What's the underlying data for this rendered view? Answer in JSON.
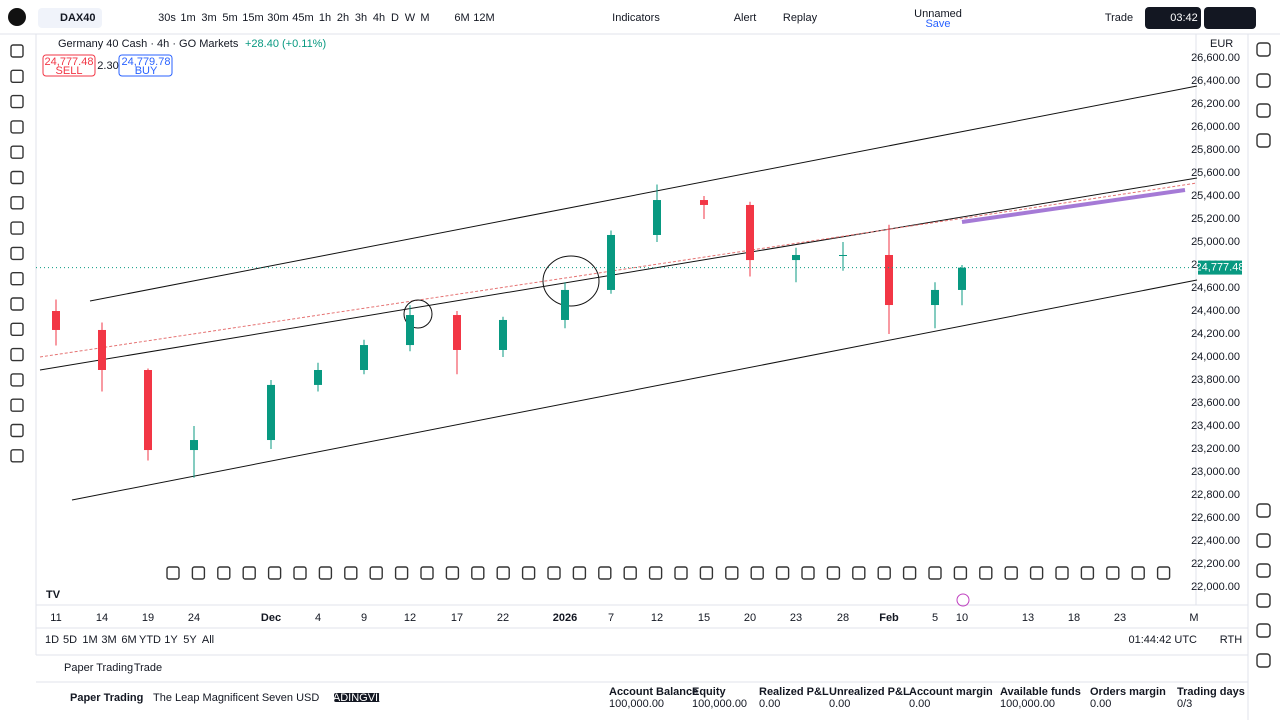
{
  "top_toolbar": {
    "symbol": "DAX40",
    "intervals": [
      "30s",
      "1m",
      "3m",
      "5m",
      "15m",
      "30m",
      "45m",
      "1h",
      "2h",
      "3h",
      "4h",
      "D",
      "W",
      "M",
      "6M",
      "12M"
    ],
    "indicators": "Indicators",
    "alert": "Alert",
    "replay": "Replay",
    "layout_name": "Unnamed",
    "layout_status": "Save",
    "trade": "Trade",
    "timer": "03:42"
  },
  "legend": {
    "title": "Germany 40 Cash · 4h · GO Markets",
    "change": "+28.40 (+0.11%)",
    "sell_price": "24,777.48",
    "sell": "SELL",
    "spread": "2.30",
    "buy_price": "24,779.78",
    "buy": "BUY"
  },
  "chart_data": {
    "type": "candlestick",
    "currency": "EUR",
    "categories": [
      "11",
      "14",
      "19",
      "24",
      "Dec",
      "4",
      "9",
      "12",
      "17",
      "22",
      "2026",
      "7",
      "12",
      "15",
      "20",
      "23",
      "28",
      "Feb",
      "5",
      "10",
      "13",
      "18",
      "23",
      "M"
    ],
    "open": [
      24400,
      24235,
      23887,
      23191,
      23278,
      23757,
      23887,
      24104,
      24365,
      24061,
      24322,
      24583,
      25061,
      25365,
      25322,
      24843,
      24887,
      24887,
      24452,
      24583,
      null,
      null,
      null,
      null
    ],
    "high": [
      24500,
      24300,
      23900,
      23400,
      23800,
      23950,
      24150,
      24450,
      24400,
      24350,
      24650,
      25100,
      25500,
      25400,
      25350,
      24950,
      25000,
      25150,
      24650,
      24800,
      null,
      null,
      null,
      null
    ],
    "low": [
      24100,
      23700,
      23100,
      22950,
      23200,
      23700,
      23850,
      24050,
      23850,
      24000,
      24250,
      24550,
      25000,
      25200,
      24700,
      24650,
      24750,
      24200,
      24250,
      24450,
      null,
      null,
      null,
      null
    ],
    "close": [
      24235,
      23887,
      23191,
      23278,
      23757,
      23887,
      24104,
      24365,
      24061,
      24322,
      24583,
      25061,
      25365,
      25322,
      24843,
      24887,
      24887,
      24452,
      24583,
      24777,
      null,
      null,
      null,
      null
    ],
    "up_color": "#089981",
    "down_color": "#f23645",
    "ylim": [
      21900,
      26700
    ],
    "yticks": [
      {
        "value": 26600,
        "label": "26,600.00"
      },
      {
        "value": 26400,
        "label": "26,400.00"
      },
      {
        "value": 26200,
        "label": "26,200.00"
      },
      {
        "value": 26000,
        "label": "26,000.00"
      },
      {
        "value": 25800,
        "label": "25,800.00"
      },
      {
        "value": 25600,
        "label": "25,600.00"
      },
      {
        "value": 25400,
        "label": "25,400.00"
      },
      {
        "value": 25200,
        "label": "25,200.00"
      },
      {
        "value": 25000,
        "label": "25,000.00"
      },
      {
        "value": 24800,
        "label": "24,800.00"
      },
      {
        "value": 24600,
        "label": "24,600.00"
      },
      {
        "value": 24400,
        "label": "24,400.00"
      },
      {
        "value": 24200,
        "label": "24,200.00"
      },
      {
        "value": 24000,
        "label": "24,000.00"
      },
      {
        "value": 23800,
        "label": "23,800.00"
      },
      {
        "value": 23600,
        "label": "23,600.00"
      },
      {
        "value": 23400,
        "label": "23,400.00"
      },
      {
        "value": 23200,
        "label": "23,200.00"
      },
      {
        "value": 23000,
        "label": "23,000.00"
      },
      {
        "value": 22800,
        "label": "22,800.00"
      },
      {
        "value": 22600,
        "label": "22,600.00"
      },
      {
        "value": 22400,
        "label": "22,400.00"
      },
      {
        "value": 22200,
        "label": "22,200.00"
      },
      {
        "value": 22000,
        "label": "22,000.00"
      }
    ],
    "last_price": {
      "value": 24777.48,
      "label": "24,777.48"
    }
  },
  "range_bar": {
    "ranges": [
      "1D",
      "5D",
      "1M",
      "3M",
      "6M",
      "YTD",
      "1Y",
      "5Y",
      "All"
    ],
    "clock": "01:44:42 UTC",
    "session": "RTH"
  },
  "bottom_panel": {
    "tab": "Paper Trading",
    "tab2": "Trade",
    "account": "Paper Trading",
    "strategy": "The Leap Magnificent Seven USD",
    "badge": "TRADINGVIEW",
    "stats": [
      {
        "label": "Account Balance",
        "value": "100,000.00"
      },
      {
        "label": "Equity",
        "value": "100,000.00"
      },
      {
        "label": "Realized P&L",
        "value": "0.00"
      },
      {
        "label": "Unrealized P&L",
        "value": "0.00"
      },
      {
        "label": "Account margin",
        "value": "0.00"
      },
      {
        "label": "Available funds",
        "value": "100,000.00"
      },
      {
        "label": "Orders margin",
        "value": "0.00"
      },
      {
        "label": "Trading days",
        "value": "0/3"
      }
    ]
  }
}
